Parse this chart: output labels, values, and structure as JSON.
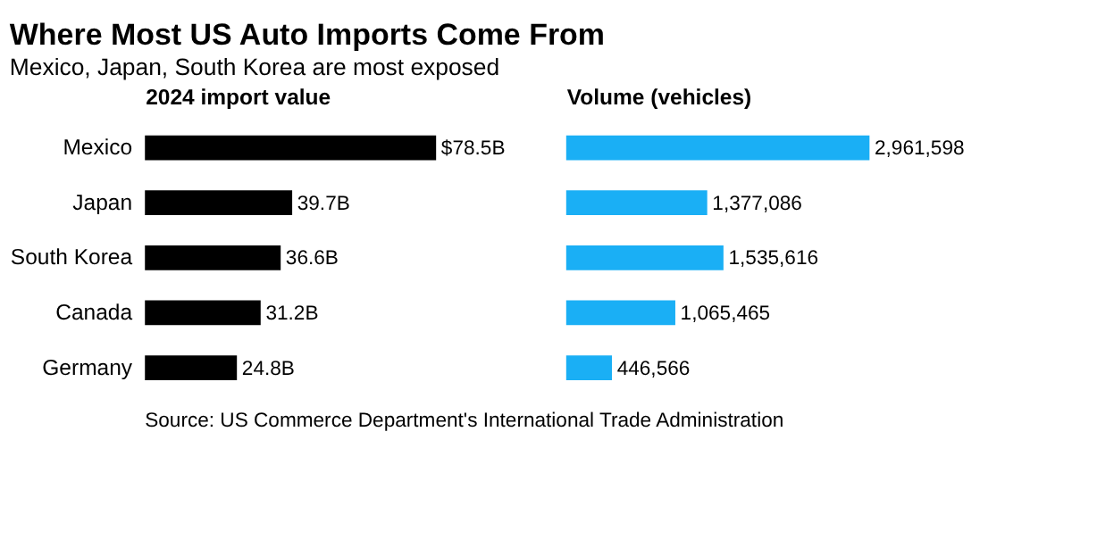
{
  "chart_data": [
    {
      "type": "bar",
      "orientation": "horizontal",
      "title": "Where Most US Auto Imports Come From",
      "subtitle": "Mexico, Japan, South Korea are most exposed",
      "xlabel": "2024 import value",
      "categories": [
        "Mexico",
        "Japan",
        "South Korea",
        "Canada",
        "Germany"
      ],
      "values": [
        78.5,
        39.7,
        36.6,
        31.2,
        24.8
      ],
      "value_labels": [
        "$78.5B",
        "39.7B",
        "36.6B",
        "31.2B",
        "24.8B"
      ],
      "color": "#000000",
      "tick_labels": "y",
      "annotations": [
        "Source: US Commerce Department's International Trade Administration"
      ]
    },
    {
      "type": "bar",
      "orientation": "horizontal",
      "xlabel": "Volume (vehicles)",
      "values": [
        2961598,
        1377086,
        1535616,
        1065465,
        446566
      ],
      "value_labels": [
        "2,961,598",
        "1,377,086",
        "1,535,616",
        "1,065,465",
        "446,566"
      ],
      "color": "#1aaff5",
      "tick_labels": false
    }
  ]
}
